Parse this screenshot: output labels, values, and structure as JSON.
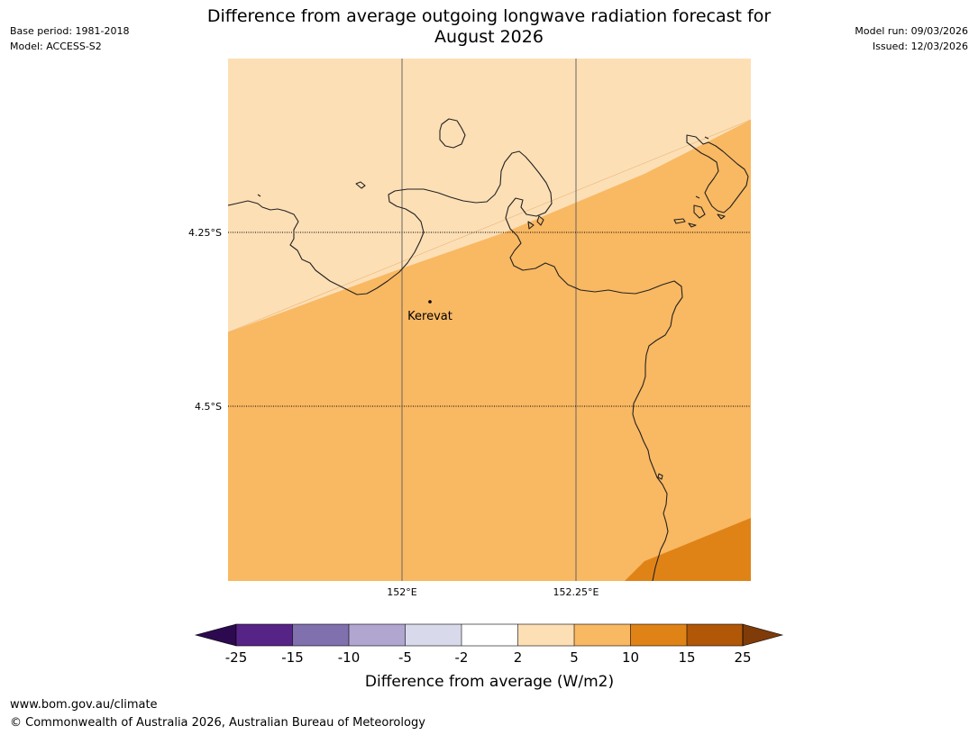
{
  "header": {
    "base_period": "Base period: 1981-2018",
    "model": "Model: ACCESS-S2",
    "model_run": "Model run: 09/03/2026",
    "issued": "Issued: 12/03/2026",
    "title_line1": "Difference from average outgoing longwave radiation forecast for",
    "title_line2": "August 2026"
  },
  "map": {
    "place_label": "Kerevat",
    "lat_labels": [
      "4.25°S",
      "4.5°S"
    ],
    "lon_labels": [
      "152°E",
      "152.25°E"
    ],
    "colors": {
      "band_2_5": "#fddfb5",
      "band_5_10": "#f9b862",
      "band_10_15": "#e08317",
      "coast": "#222222"
    }
  },
  "legend": {
    "title": "Difference from average (W/m2)",
    "tick_labels": [
      "-25",
      "-15",
      "-10",
      "-5",
      "-2",
      "2",
      "5",
      "10",
      "15",
      "25"
    ],
    "colors": [
      "#2d0a4f",
      "#562487",
      "#8070ad",
      "#b1a6d0",
      "#d9d9ec",
      "#ffffff",
      "#fddfb5",
      "#f9b862",
      "#e08317",
      "#b15708",
      "#7f3b08"
    ]
  },
  "footer": {
    "url": "www.bom.gov.au/climate",
    "copyright": "© Commonwealth of Australia 2026, Australian Bureau of Meteorology"
  }
}
